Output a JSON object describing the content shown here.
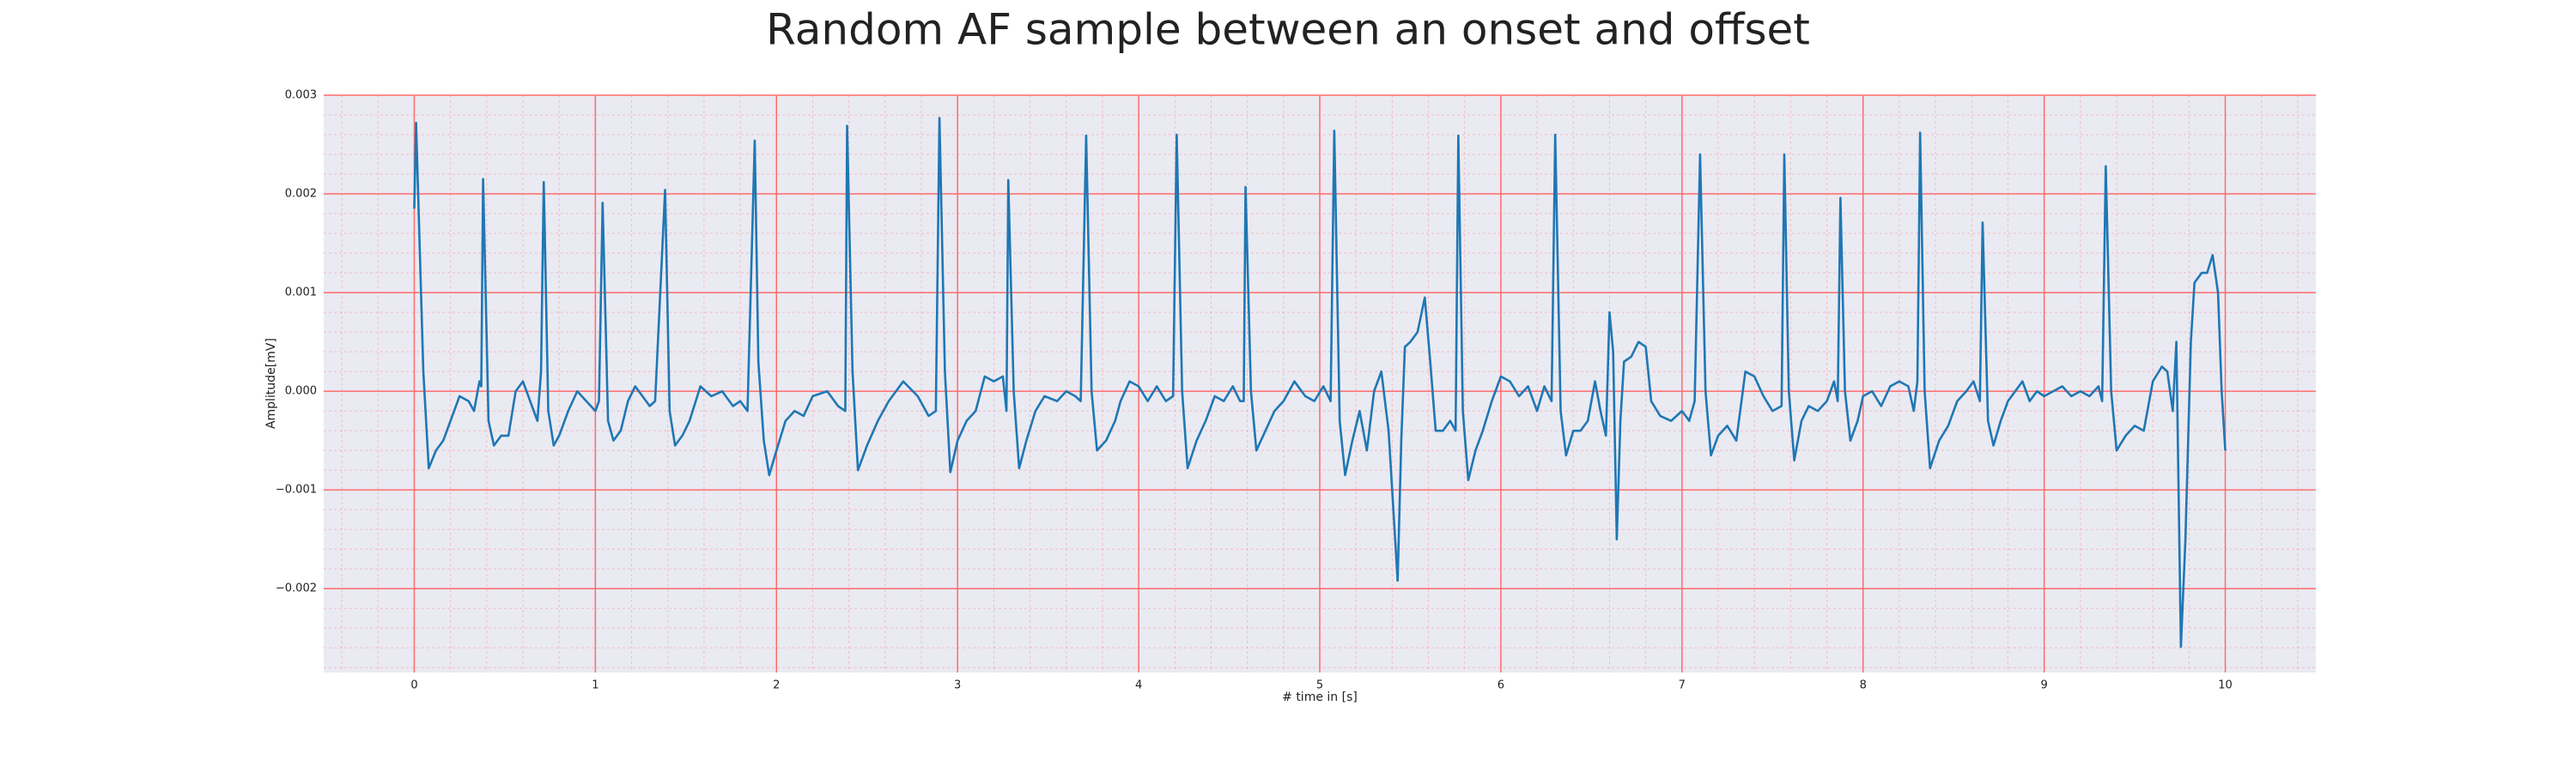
{
  "chart_data": {
    "type": "line",
    "title": "Random AF sample between an onset and offset",
    "x_label": "# time in [s]",
    "y_label": "Amplitude[mV]",
    "color": "#1f77b4",
    "grid": true,
    "minor_grid": true,
    "grid_color": "#ff6b6b",
    "background": "#eaeaf2",
    "xlim": [
      -0.5,
      10.5
    ],
    "ylim": [
      -0.00285,
      0.003
    ],
    "xticks": [
      0,
      1,
      2,
      3,
      4,
      5,
      6,
      7,
      8,
      9,
      10
    ],
    "yticks": [
      {
        "value": -0.002,
        "label": "−0.002"
      },
      {
        "value": -0.001,
        "label": "−0.001"
      },
      {
        "value": 0,
        "label": "0.000"
      },
      {
        "value": 0.001,
        "label": "0.001"
      },
      {
        "value": 0.002,
        "label": "0.002"
      },
      {
        "value": 0.003,
        "label": "0.003"
      }
    ],
    "x": [
      0,
      0.01,
      0.05,
      0.08,
      0.12,
      0.16,
      0.2,
      0.25,
      0.3,
      0.33,
      0.36,
      0.37,
      0.38,
      0.41,
      0.44,
      0.48,
      0.52,
      0.56,
      0.6,
      0.64,
      0.68,
      0.7,
      0.715,
      0.74,
      0.77,
      0.8,
      0.85,
      0.9,
      0.95,
      1.0,
      1.02,
      1.04,
      1.07,
      1.1,
      1.14,
      1.18,
      1.22,
      1.26,
      1.3,
      1.33,
      1.385,
      1.41,
      1.44,
      1.48,
      1.52,
      1.58,
      1.64,
      1.7,
      1.76,
      1.8,
      1.84,
      1.88,
      1.9,
      1.93,
      1.96,
      2.0,
      2.05,
      2.1,
      2.15,
      2.2,
      2.28,
      2.34,
      2.38,
      2.39,
      2.42,
      2.45,
      2.5,
      2.56,
      2.62,
      2.7,
      2.78,
      2.84,
      2.88,
      2.9,
      2.93,
      2.96,
      3.0,
      3.05,
      3.1,
      3.15,
      3.2,
      3.25,
      3.27,
      3.28,
      3.31,
      3.34,
      3.38,
      3.43,
      3.48,
      3.55,
      3.6,
      3.65,
      3.68,
      3.71,
      3.74,
      3.77,
      3.82,
      3.87,
      3.9,
      3.95,
      4.0,
      4.05,
      4.1,
      4.15,
      4.19,
      4.21,
      4.24,
      4.27,
      4.32,
      4.37,
      4.42,
      4.47,
      4.52,
      4.56,
      4.58,
      4.59,
      4.62,
      4.65,
      4.7,
      4.75,
      4.8,
      4.86,
      4.92,
      4.97,
      5.02,
      5.06,
      5.08,
      5.11,
      5.14,
      5.18,
      5.22,
      5.26,
      5.3,
      5.34,
      5.38,
      5.43,
      5.45,
      5.47,
      5.5,
      5.54,
      5.58,
      5.61,
      5.64,
      5.68,
      5.72,
      5.75,
      5.765,
      5.79,
      5.82,
      5.86,
      5.9,
      5.95,
      6.0,
      6.05,
      6.1,
      6.15,
      6.2,
      6.24,
      6.28,
      6.3,
      6.33,
      6.36,
      6.4,
      6.44,
      6.48,
      6.52,
      6.55,
      6.58,
      6.6,
      6.62,
      6.64,
      6.66,
      6.68,
      6.72,
      6.76,
      6.8,
      6.83,
      6.88,
      6.94,
      7.0,
      7.04,
      7.07,
      7.1,
      7.13,
      7.16,
      7.2,
      7.25,
      7.3,
      7.35,
      7.4,
      7.45,
      7.5,
      7.55,
      7.565,
      7.59,
      7.62,
      7.66,
      7.7,
      7.75,
      7.8,
      7.84,
      7.86,
      7.875,
      7.9,
      7.93,
      7.97,
      8.0,
      8.05,
      8.1,
      8.15,
      8.2,
      8.25,
      8.28,
      8.3,
      8.315,
      8.34,
      8.37,
      8.42,
      8.47,
      8.52,
      8.57,
      8.61,
      8.645,
      8.66,
      8.69,
      8.72,
      8.76,
      8.8,
      8.84,
      8.88,
      8.92,
      8.96,
      9.0,
      9.05,
      9.1,
      9.15,
      9.2,
      9.25,
      9.3,
      9.32,
      9.34,
      9.37,
      9.4,
      9.45,
      9.5,
      9.55,
      9.6,
      9.65,
      9.68,
      9.71,
      9.73,
      9.755,
      9.78,
      9.81,
      9.83,
      9.87,
      9.9,
      9.93,
      9.96,
      9.98,
      10.0
    ],
    "values": [
      0.00185,
      0.00272,
      0.0002,
      -0.00078,
      -0.0006,
      -0.0005,
      -0.0003,
      -5e-05,
      -0.0001,
      -0.0002,
      0.0001,
      5e-05,
      0.00215,
      -0.0003,
      -0.00055,
      -0.00045,
      -0.00045,
      0,
      0.0001,
      -0.0001,
      -0.0003,
      0.0002,
      0.00212,
      -0.0002,
      -0.00055,
      -0.00045,
      -0.0002,
      0,
      -0.0001,
      -0.0002,
      -0.0001,
      0.00191,
      -0.0003,
      -0.0005,
      -0.0004,
      -0.0001,
      5e-05,
      -5e-05,
      -0.00015,
      -0.0001,
      0.00204,
      -0.0002,
      -0.00055,
      -0.00045,
      -0.0003,
      5e-05,
      -5e-05,
      0,
      -0.00015,
      -0.0001,
      -0.0002,
      0.00254,
      0.0003,
      -0.0005,
      -0.00085,
      -0.0006,
      -0.0003,
      -0.0002,
      -0.00025,
      -5e-05,
      0,
      -0.00015,
      -0.0002,
      0.00269,
      0.0002,
      -0.0008,
      -0.00055,
      -0.0003,
      -0.0001,
      0.0001,
      -5e-05,
      -0.00025,
      -0.0002,
      0.00277,
      0.0002,
      -0.00082,
      -0.0005,
      -0.0003,
      -0.0002,
      0.00015,
      0.0001,
      0.00015,
      -0.0002,
      0.00214,
      0,
      -0.00078,
      -0.0005,
      -0.0002,
      -5e-05,
      -0.0001,
      0,
      -5e-05,
      -0.0001,
      0.00259,
      0,
      -0.0006,
      -0.0005,
      -0.0003,
      -0.0001,
      0.0001,
      5e-05,
      -0.0001,
      5e-05,
      -0.0001,
      -5e-05,
      0.0026,
      0,
      -0.00078,
      -0.0005,
      -0.0003,
      -5e-05,
      -0.0001,
      5e-05,
      -0.0001,
      -0.0001,
      0.00207,
      0,
      -0.0006,
      -0.0004,
      -0.0002,
      -0.0001,
      0.0001,
      -5e-05,
      -0.0001,
      5e-05,
      -0.0001,
      0.00264,
      -0.0003,
      -0.00085,
      -0.0005,
      -0.0002,
      -0.0006,
      0,
      0.0002,
      -0.0004,
      -0.00192,
      -0.0005,
      0.00045,
      0.0005,
      0.0006,
      0.00095,
      0.0003,
      -0.0004,
      -0.0004,
      -0.0003,
      -0.0004,
      0.00259,
      -0.0002,
      -0.0009,
      -0.0006,
      -0.0004,
      -0.0001,
      0.00015,
      0.0001,
      -5e-05,
      5e-05,
      -0.0002,
      5e-05,
      -0.0001,
      0.0026,
      -0.0002,
      -0.00065,
      -0.0004,
      -0.0004,
      -0.0003,
      0.0001,
      -0.0002,
      -0.00045,
      0.0008,
      0.0004,
      -0.0015,
      -0.0003,
      0.0003,
      0.00035,
      0.0005,
      0.00045,
      -0.0001,
      -0.00025,
      -0.0003,
      -0.0002,
      -0.0003,
      -0.0001,
      0.0024,
      0,
      -0.00065,
      -0.00045,
      -0.00035,
      -0.0005,
      0.0002,
      0.00015,
      -5e-05,
      -0.0002,
      -0.00015,
      0.0024,
      0,
      -0.0007,
      -0.0003,
      -0.00015,
      -0.0002,
      -0.0001,
      0.0001,
      -0.0001,
      0.00196,
      0,
      -0.0005,
      -0.0003,
      -5e-05,
      0,
      -0.00015,
      5e-05,
      0.0001,
      5e-05,
      -0.0002,
      0.0001,
      0.00262,
      0,
      -0.00078,
      -0.0005,
      -0.00035,
      -0.0001,
      0,
      0.0001,
      -0.0001,
      0.00171,
      -0.0003,
      -0.00055,
      -0.0003,
      -0.0001,
      0,
      0.0001,
      -0.0001,
      0,
      -5e-05,
      0,
      5e-05,
      -5e-05,
      0,
      -5e-05,
      5e-05,
      -0.0001,
      0.00228,
      0,
      -0.0006,
      -0.00045,
      -0.00035,
      -0.0004,
      0.0001,
      0.00025,
      0.0002,
      -0.0002,
      0.0005,
      -0.00259,
      -0.0015,
      0.0005,
      0.0011,
      0.0012,
      0.0012,
      0.00138,
      0.001,
      0,
      -0.0006
    ]
  }
}
